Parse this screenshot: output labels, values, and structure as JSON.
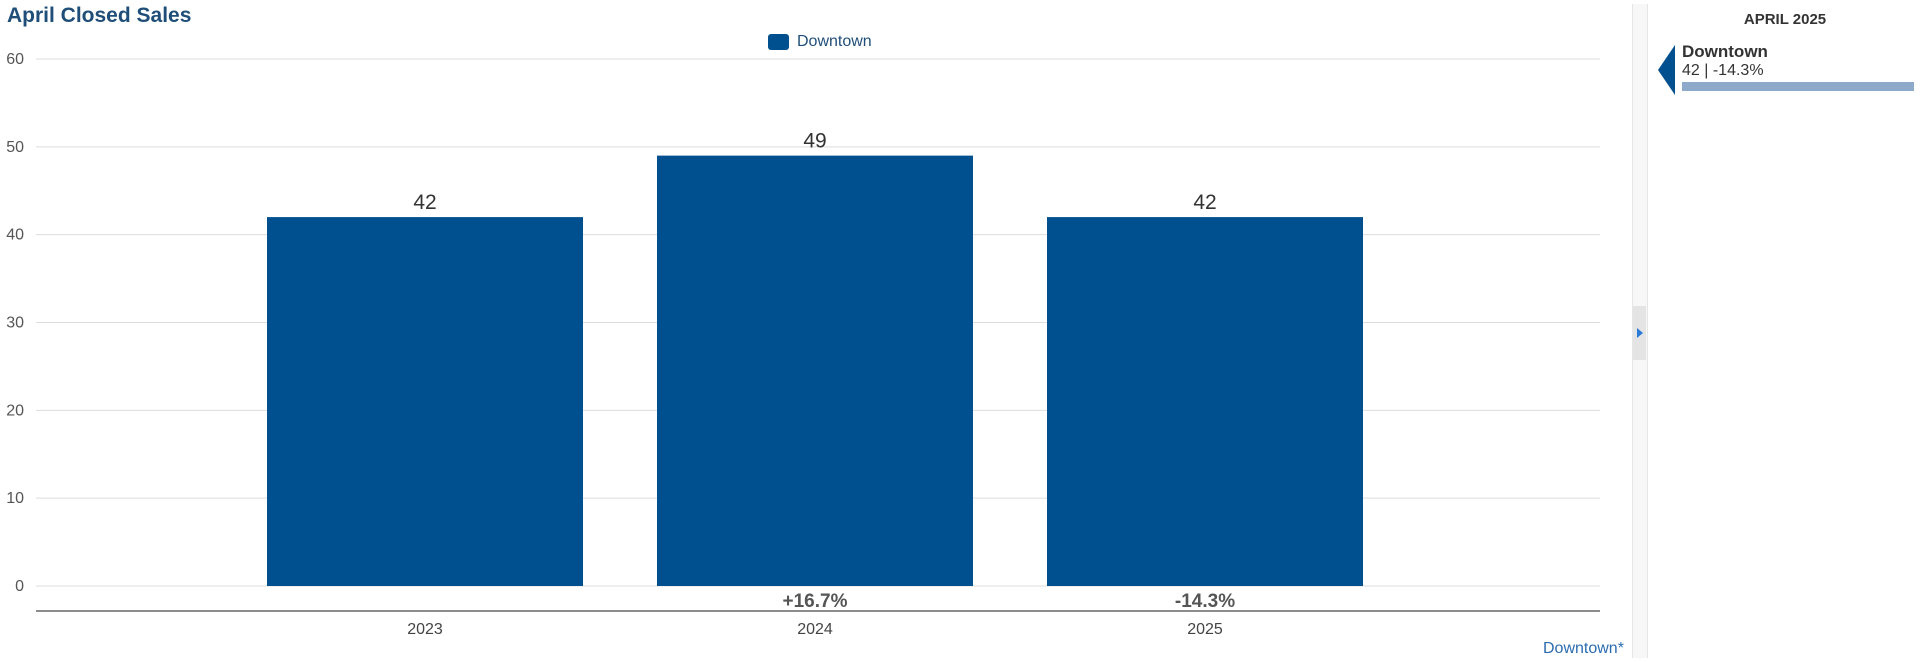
{
  "header": {
    "title": "April Closed Sales"
  },
  "legend": [
    {
      "name": "Downtown",
      "color": "#004f8e"
    }
  ],
  "chart_data": {
    "type": "bar",
    "title": "April Closed Sales",
    "categories": [
      "2023",
      "2024",
      "2025"
    ],
    "series": [
      {
        "name": "Downtown",
        "values": [
          42,
          49,
          42
        ],
        "color": "#004f8e"
      }
    ],
    "data_labels": [
      "42",
      "49",
      "42"
    ],
    "change_labels": [
      "",
      "+16.7%",
      "-14.3%"
    ],
    "ylim": [
      0,
      60
    ],
    "yticks": [
      0,
      10,
      20,
      30,
      40,
      50,
      60
    ],
    "grid": true,
    "legend_position": "top-center"
  },
  "footnote": "Downtown*",
  "side_panel": {
    "title": "APRIL 2025",
    "items": [
      {
        "name": "Downtown",
        "value": "42 | -14.3%",
        "color": "#004f8e",
        "bar_color": "#8eaacb"
      }
    ]
  },
  "colors": {
    "title": "#1f4e79",
    "bar": "#004f8e",
    "grid": "#dddddd",
    "axis": "#666666",
    "link": "#2b6cb0"
  }
}
